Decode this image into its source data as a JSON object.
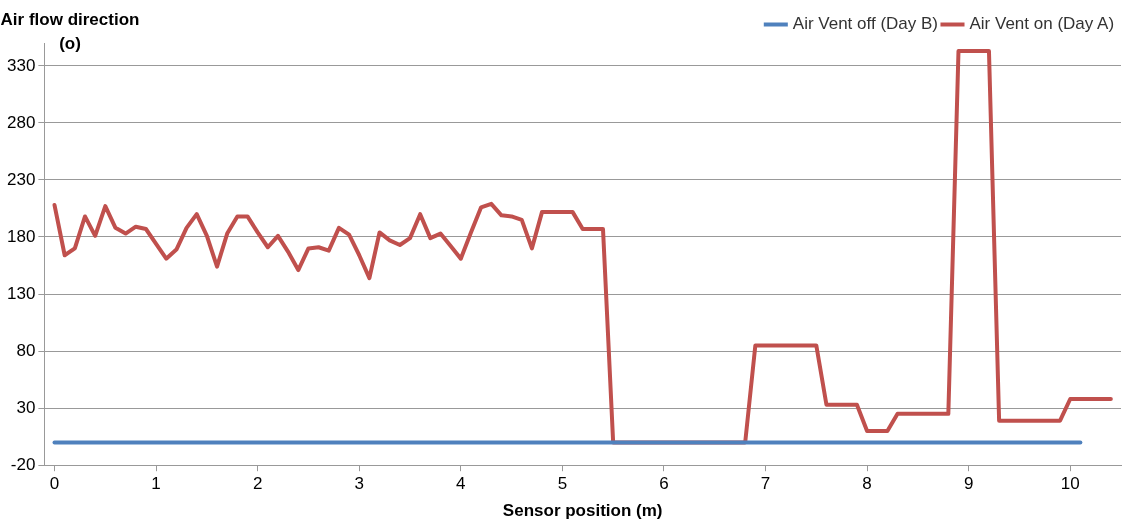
{
  "chart_data": {
    "type": "line",
    "xlabel": "Sensor position (m)",
    "ylabel": "Air flow direction\n(o)",
    "x": [
      0,
      0.1,
      0.2,
      0.3,
      0.4,
      0.5,
      0.6,
      0.7,
      0.8,
      0.9,
      1,
      1.1,
      1.2,
      1.3,
      1.4,
      1.5,
      1.6,
      1.7,
      1.8,
      1.9,
      2,
      2.1,
      2.2,
      2.3,
      2.4,
      2.5,
      2.6,
      2.7,
      2.8,
      2.9,
      3,
      3.1,
      3.2,
      3.3,
      3.4,
      3.5,
      3.6,
      3.7,
      3.8,
      3.9,
      4,
      4.1,
      4.2,
      4.3,
      4.4,
      4.5,
      4.6,
      4.7,
      4.8,
      4.9,
      5,
      5.1,
      5.2,
      5.3,
      5.4,
      5.5,
      5.6,
      5.7,
      5.8,
      5.9,
      6,
      6.1,
      6.2,
      6.3,
      6.4,
      6.5,
      6.6,
      6.7,
      6.8,
      6.9,
      7,
      7.1,
      7.2,
      7.3,
      7.4,
      7.5,
      7.6,
      7.7,
      7.8,
      7.9,
      8,
      8.1,
      8.2,
      8.3,
      8.4,
      8.5,
      8.6,
      8.7,
      8.8,
      8.9,
      9,
      9.1,
      9.2,
      9.3,
      9.4,
      9.5,
      9.6,
      9.7,
      9.8,
      9.9,
      10,
      10.1,
      10.2,
      10.3,
      10.4
    ],
    "series": [
      {
        "name": "Air Vent off (Day B)",
        "color": "#4f81bd",
        "x": [
          0,
          10.1
        ],
        "values": [
          0,
          0
        ]
      },
      {
        "name": "Air Vent on (Day A)",
        "color": "#c0504d",
        "values": [
          208,
          164,
          170,
          198,
          181,
          207,
          188,
          183,
          189,
          187,
          174,
          161,
          169,
          188,
          200,
          181,
          154,
          183,
          198,
          198,
          184,
          171,
          181,
          167,
          151,
          170,
          171,
          168,
          188,
          182,
          164,
          144,
          184,
          177,
          173,
          179,
          200,
          179,
          183,
          172,
          161,
          184,
          206,
          209,
          199,
          198,
          195,
          170,
          202,
          202,
          202,
          202,
          187,
          187,
          187,
          0,
          0,
          0,
          0,
          0,
          0,
          0,
          0,
          0,
          0,
          0,
          0,
          0,
          0,
          85,
          85,
          85,
          85,
          85,
          85,
          85,
          33,
          33,
          33,
          33,
          10,
          10,
          10,
          25,
          25,
          25,
          25,
          25,
          25,
          343,
          343,
          343,
          343,
          19,
          19,
          19,
          19,
          19,
          19,
          19,
          38,
          38,
          38,
          38,
          38
        ]
      }
    ],
    "xlim": [
      -0.1,
      10.5
    ],
    "xticks": [
      0,
      1,
      2,
      3,
      4,
      5,
      6,
      7,
      8,
      9,
      10
    ],
    "ylim": [
      -20,
      350
    ],
    "yticks": [
      -20,
      30,
      80,
      130,
      180,
      230,
      280,
      330
    ],
    "grid": "y",
    "legend": "top right",
    "marker": "none",
    "line_style": "solid"
  }
}
